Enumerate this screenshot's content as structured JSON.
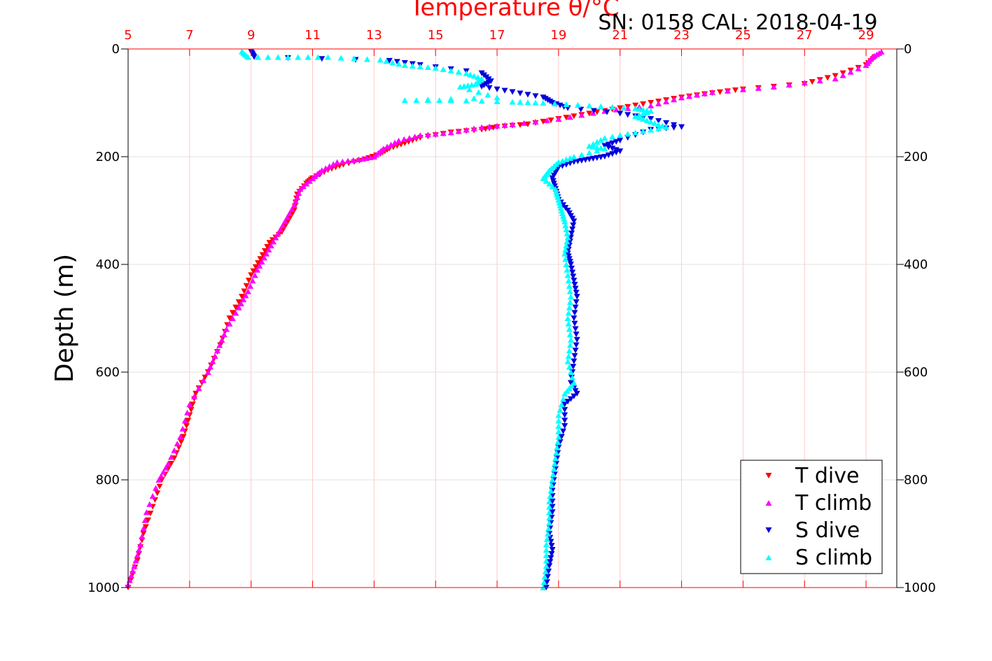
{
  "chart_data": {
    "type": "scatter",
    "title": "Temperature θ/°C",
    "subtitle": "SN: 0158  CAL: 2018-04-19",
    "xlabel": "",
    "ylabel": "Depth (m)",
    "xlim": [
      5,
      30
    ],
    "ylim": [
      1000,
      0
    ],
    "x_tick_labels": [
      "5",
      "7",
      "9",
      "11",
      "13",
      "15",
      "17",
      "19",
      "21",
      "23",
      "25",
      "27",
      "29"
    ],
    "y_tick_labels": [
      "0",
      "200",
      "400",
      "600",
      "800",
      "1000"
    ],
    "grid": true,
    "legend_position": "bottom-right",
    "colors": {
      "title": "#ff0000",
      "top_axis": "#ff0000",
      "t_dive": "#ff0000",
      "t_climb": "#ff00ff",
      "s_dive": "#0000dd",
      "s_climb": "#00ffff"
    },
    "series": [
      {
        "name": "T dive",
        "marker": "triangle-down",
        "color": "#ff0000",
        "points": [
          [
            29.3,
            15
          ],
          [
            29.0,
            30
          ],
          [
            28.0,
            50
          ],
          [
            27.0,
            65
          ],
          [
            25.0,
            75
          ],
          [
            24.0,
            82
          ],
          [
            23.0,
            90
          ],
          [
            22.0,
            100
          ],
          [
            21.0,
            110
          ],
          [
            20.0,
            120
          ],
          [
            19.0,
            130
          ],
          [
            18.0,
            140
          ],
          [
            17.0,
            145
          ],
          [
            16.5,
            150
          ],
          [
            15.5,
            155
          ],
          [
            14.5,
            165
          ],
          [
            14.0,
            175
          ],
          [
            13.5,
            185
          ],
          [
            13.2,
            195
          ],
          [
            12.7,
            205
          ],
          [
            12.0,
            215
          ],
          [
            11.5,
            225
          ],
          [
            11.0,
            240
          ],
          [
            10.8,
            250
          ],
          [
            10.5,
            270
          ],
          [
            10.4,
            300
          ],
          [
            10.2,
            320
          ],
          [
            10.0,
            340
          ],
          [
            9.6,
            360
          ],
          [
            9.3,
            390
          ],
          [
            9.0,
            420
          ],
          [
            8.7,
            460
          ],
          [
            8.3,
            500
          ],
          [
            8.0,
            550
          ],
          [
            7.6,
            600
          ],
          [
            7.2,
            640
          ],
          [
            7.0,
            680
          ],
          [
            6.8,
            720
          ],
          [
            6.5,
            760
          ],
          [
            6.1,
            800
          ],
          [
            5.8,
            850
          ],
          [
            5.5,
            900
          ],
          [
            5.3,
            950
          ],
          [
            5.0,
            1000
          ]
        ]
      },
      {
        "name": "T climb",
        "marker": "triangle-up",
        "color": "#ff00ff",
        "points": [
          [
            29.5,
            5
          ],
          [
            29.2,
            15
          ],
          [
            29.0,
            30
          ],
          [
            28.0,
            55
          ],
          [
            26.0,
            70
          ],
          [
            24.0,
            80
          ],
          [
            23.0,
            90
          ],
          [
            22.0,
            105
          ],
          [
            20.5,
            115
          ],
          [
            19.0,
            130
          ],
          [
            17.5,
            140
          ],
          [
            16.5,
            145
          ],
          [
            15.5,
            155
          ],
          [
            14.5,
            160
          ],
          [
            13.8,
            170
          ],
          [
            13.3,
            185
          ],
          [
            13.0,
            200
          ],
          [
            12.5,
            205
          ],
          [
            11.8,
            210
          ],
          [
            11.3,
            225
          ],
          [
            11.0,
            240
          ],
          [
            10.6,
            260
          ],
          [
            10.4,
            290
          ],
          [
            10.1,
            320
          ],
          [
            9.8,
            350
          ],
          [
            9.5,
            380
          ],
          [
            9.2,
            410
          ],
          [
            8.9,
            450
          ],
          [
            8.6,
            480
          ],
          [
            8.2,
            520
          ],
          [
            7.9,
            560
          ],
          [
            7.6,
            600
          ],
          [
            7.0,
            660
          ],
          [
            6.7,
            720
          ],
          [
            6.3,
            770
          ],
          [
            6.0,
            800
          ],
          [
            5.6,
            860
          ],
          [
            5.4,
            920
          ],
          [
            5.2,
            960
          ],
          [
            5.0,
            995
          ]
        ]
      },
      {
        "name": "S dive",
        "marker": "triangle-down",
        "color": "#0000dd",
        "points": [
          [
            9.0,
            5
          ],
          [
            9.1,
            15
          ],
          [
            13.5,
            22
          ],
          [
            14.5,
            30
          ],
          [
            16.5,
            45
          ],
          [
            16.8,
            60
          ],
          [
            16.5,
            70
          ],
          [
            17.5,
            80
          ],
          [
            18.5,
            90
          ],
          [
            18.8,
            100
          ],
          [
            19.3,
            110
          ],
          [
            21.0,
            120
          ],
          [
            22.0,
            130
          ],
          [
            23.0,
            145
          ],
          [
            22.0,
            150
          ],
          [
            21.0,
            170
          ],
          [
            20.5,
            180
          ],
          [
            21.0,
            190
          ],
          [
            20.5,
            200
          ],
          [
            20.0,
            205
          ],
          [
            19.5,
            210
          ],
          [
            19.0,
            220
          ],
          [
            18.8,
            240
          ],
          [
            18.9,
            260
          ],
          [
            19.0,
            280
          ],
          [
            19.3,
            300
          ],
          [
            19.5,
            320
          ],
          [
            19.4,
            350
          ],
          [
            19.3,
            380
          ],
          [
            19.4,
            400
          ],
          [
            19.5,
            430
          ],
          [
            19.6,
            460
          ],
          [
            19.5,
            500
          ],
          [
            19.6,
            540
          ],
          [
            19.5,
            580
          ],
          [
            19.4,
            620
          ],
          [
            19.6,
            640
          ],
          [
            19.2,
            660
          ],
          [
            19.2,
            700
          ],
          [
            19.0,
            740
          ],
          [
            18.9,
            780
          ],
          [
            18.8,
            820
          ],
          [
            18.8,
            860
          ],
          [
            18.7,
            900
          ],
          [
            18.8,
            930
          ],
          [
            18.7,
            960
          ],
          [
            18.6,
            1000
          ]
        ]
      },
      {
        "name": "S climb",
        "marker": "triangle-up",
        "color": "#00ffff",
        "points": [
          [
            8.7,
            5
          ],
          [
            8.9,
            15
          ],
          [
            10.2,
            15
          ],
          [
            11.5,
            15
          ],
          [
            13.2,
            20
          ],
          [
            14.0,
            30
          ],
          [
            15.0,
            35
          ],
          [
            16.0,
            45
          ],
          [
            16.5,
            55
          ],
          [
            16.3,
            65
          ],
          [
            15.8,
            70
          ],
          [
            17.0,
            90
          ],
          [
            14.0,
            95
          ],
          [
            15.5,
            95
          ],
          [
            17.5,
            98
          ],
          [
            18.5,
            100
          ],
          [
            20.0,
            105
          ],
          [
            21.5,
            110
          ],
          [
            22.0,
            115
          ],
          [
            21.5,
            125
          ],
          [
            22.0,
            135
          ],
          [
            22.5,
            145
          ],
          [
            21.5,
            155
          ],
          [
            20.5,
            165
          ],
          [
            20.0,
            180
          ],
          [
            20.5,
            185
          ],
          [
            19.5,
            200
          ],
          [
            19.0,
            210
          ],
          [
            18.7,
            225
          ],
          [
            18.5,
            240
          ],
          [
            18.9,
            260
          ],
          [
            19.0,
            280
          ],
          [
            19.1,
            300
          ],
          [
            19.2,
            320
          ],
          [
            19.3,
            350
          ],
          [
            19.2,
            380
          ],
          [
            19.3,
            420
          ],
          [
            19.4,
            460
          ],
          [
            19.3,
            500
          ],
          [
            19.4,
            540
          ],
          [
            19.3,
            580
          ],
          [
            19.5,
            620
          ],
          [
            19.2,
            640
          ],
          [
            19.0,
            680
          ],
          [
            19.0,
            720
          ],
          [
            18.9,
            760
          ],
          [
            18.8,
            800
          ],
          [
            18.7,
            840
          ],
          [
            18.7,
            880
          ],
          [
            18.6,
            920
          ],
          [
            18.6,
            960
          ],
          [
            18.5,
            1000
          ]
        ]
      }
    ]
  }
}
